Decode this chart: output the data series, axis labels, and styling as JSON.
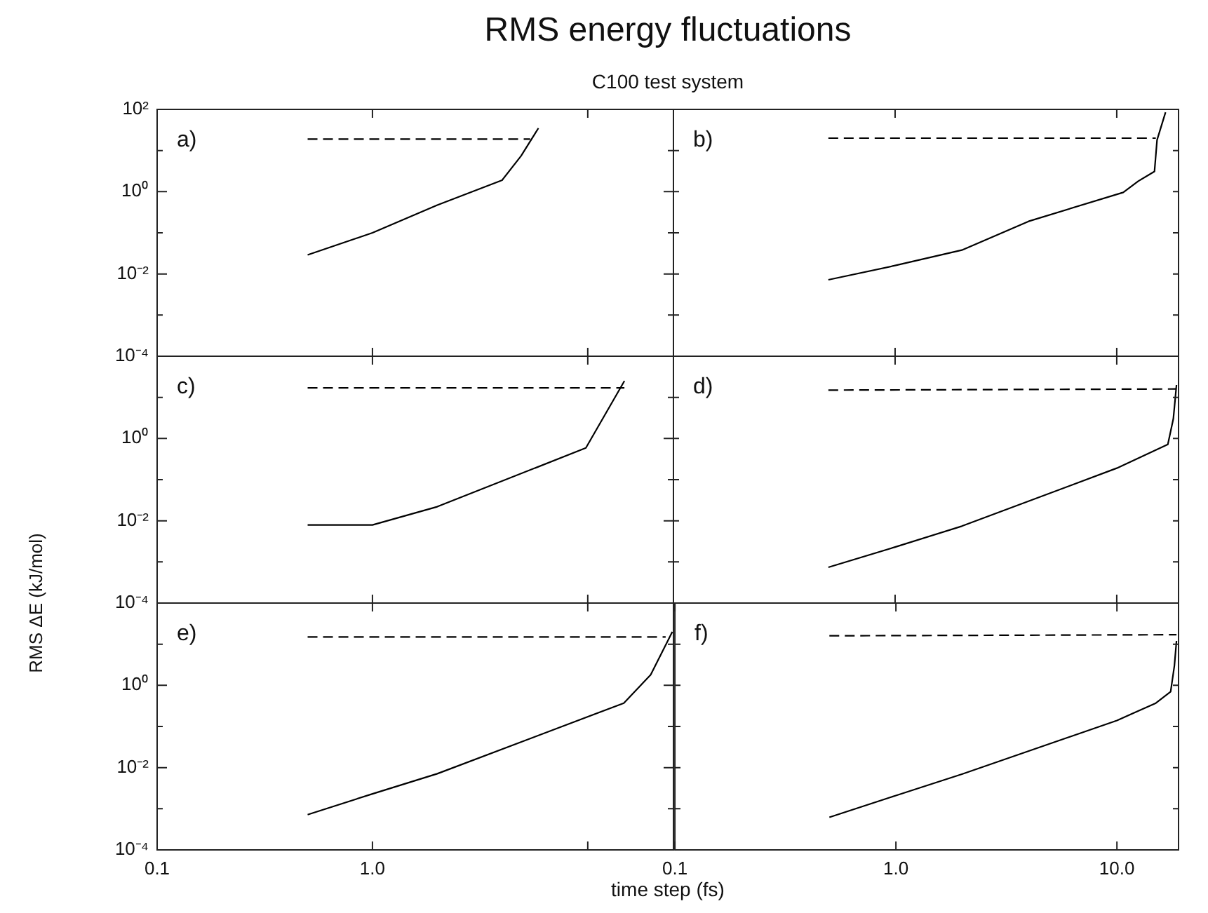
{
  "chart_data": [
    {
      "type": "line",
      "title": "RMS energy fluctuations",
      "subtitle": "C100 test system",
      "annotations": [
        "a)"
      ],
      "marker": "none",
      "legend": false,
      "grid": false,
      "log": "xy",
      "tick_labels": "y",
      "xlim": [
        0.1,
        25
      ],
      "xticks": [
        {
          "value": 0.1,
          "label": null
        },
        {
          "value": 1,
          "label": null
        },
        {
          "value": 10,
          "label": null
        }
      ],
      "ylim": [
        0.0001,
        100
      ],
      "yticks": [
        {
          "value": 100,
          "label": "10²"
        },
        {
          "value": 10,
          "label": null
        },
        {
          "value": 1,
          "label": "10⁰"
        },
        {
          "value": 0.1,
          "label": null
        },
        {
          "value": 0.01,
          "label": "10⁻²"
        },
        {
          "value": 0.001,
          "label": null
        },
        {
          "value": 0.0001,
          "label": "10⁻⁴"
        }
      ],
      "series": [
        {
          "color": "#000000",
          "line_style": "solid",
          "x": [
            0.5,
            1,
            2,
            4,
            4.9,
            5.9
          ],
          "values": [
            0.029,
            0.1,
            0.47,
            1.9,
            7.4,
            35
          ]
        },
        {
          "color": "#000000",
          "line_style": "dashed",
          "x": [
            0.5,
            5.4
          ],
          "values": [
            19,
            19
          ]
        }
      ]
    },
    {
      "type": "line",
      "annotations": [
        "b)"
      ],
      "marker": "none",
      "legend": false,
      "grid": false,
      "log": "xy",
      "tick_labels": false,
      "xlim": [
        0.1,
        19
      ],
      "xticks": [
        {
          "value": 0.1,
          "label": null
        },
        {
          "value": 1,
          "label": null
        },
        {
          "value": 10,
          "label": null
        }
      ],
      "ylim": [
        0.0001,
        100
      ],
      "yticks": [
        {
          "value": 100,
          "label": null
        },
        {
          "value": 10,
          "label": null
        },
        {
          "value": 1,
          "label": null
        },
        {
          "value": 0.1,
          "label": null
        },
        {
          "value": 0.01,
          "label": null
        },
        {
          "value": 0.001,
          "label": null
        },
        {
          "value": 0.0001,
          "label": null
        }
      ],
      "series": [
        {
          "color": "#000000",
          "line_style": "solid",
          "x": [
            0.5,
            1,
            2,
            4,
            10.7,
            12.5,
            14.8,
            15.2,
            16.6
          ],
          "values": [
            0.0072,
            0.016,
            0.038,
            0.19,
            0.96,
            1.8,
            3.1,
            18,
            85
          ]
        },
        {
          "color": "#000000",
          "line_style": "dashed",
          "x": [
            0.5,
            15
          ],
          "values": [
            20,
            20
          ]
        }
      ]
    },
    {
      "type": "line",
      "ylabel": "RMS ΔE (kJ/mol)",
      "annotations": [
        "c)"
      ],
      "marker": "none",
      "legend": false,
      "grid": false,
      "log": "xy",
      "tick_labels": "y",
      "xlim": [
        0.1,
        25
      ],
      "xticks": [
        {
          "value": 0.1,
          "label": null
        },
        {
          "value": 1,
          "label": null
        },
        {
          "value": 10,
          "label": null
        }
      ],
      "ylim": [
        0.0001,
        100
      ],
      "yticks": [
        {
          "value": 100,
          "label": null
        },
        {
          "value": 10,
          "label": null
        },
        {
          "value": 1,
          "label": "10⁰"
        },
        {
          "value": 0.1,
          "label": null
        },
        {
          "value": 0.01,
          "label": "10⁻²"
        },
        {
          "value": 0.001,
          "label": null
        },
        {
          "value": 0.0001,
          "label": "10⁻⁴"
        }
      ],
      "series": [
        {
          "color": "#000000",
          "line_style": "solid",
          "x": [
            0.5,
            1,
            2,
            9.8,
            14.8
          ],
          "values": [
            0.0079,
            0.0079,
            0.022,
            0.59,
            25
          ]
        },
        {
          "color": "#000000",
          "line_style": "dashed",
          "x": [
            0.5,
            14.8
          ],
          "values": [
            17,
            17
          ]
        }
      ]
    },
    {
      "type": "line",
      "annotations": [
        "d)"
      ],
      "marker": "none",
      "legend": false,
      "grid": false,
      "log": "xy",
      "tick_labels": false,
      "xlim": [
        0.1,
        19
      ],
      "xticks": [
        {
          "value": 0.1,
          "label": null
        },
        {
          "value": 1,
          "label": null
        },
        {
          "value": 10,
          "label": null
        }
      ],
      "ylim": [
        0.0001,
        100
      ],
      "yticks": [
        {
          "value": 100,
          "label": null
        },
        {
          "value": 10,
          "label": null
        },
        {
          "value": 1,
          "label": null
        },
        {
          "value": 0.1,
          "label": null
        },
        {
          "value": 0.01,
          "label": null
        },
        {
          "value": 0.001,
          "label": null
        },
        {
          "value": 0.0001,
          "label": null
        }
      ],
      "series": [
        {
          "color": "#000000",
          "line_style": "solid",
          "x": [
            0.5,
            1,
            2,
            10,
            17,
            18,
            18.6
          ],
          "values": [
            0.00074,
            0.0023,
            0.0074,
            0.19,
            0.72,
            3,
            20
          ]
        },
        {
          "color": "#000000",
          "line_style": "dashed",
          "x": [
            0.5,
            18.6
          ],
          "values": [
            15,
            16
          ]
        }
      ]
    },
    {
      "type": "line",
      "xlabel": "time step (fs)",
      "annotations": [
        "e)"
      ],
      "marker": "none",
      "legend": false,
      "grid": false,
      "log": "xy",
      "xlim": [
        0.1,
        25
      ],
      "xticks": [
        0.1,
        {
          "value": 1,
          "label": "1.0"
        },
        {
          "value": 10,
          "label": null
        }
      ],
      "ylim": [
        0.0001,
        100
      ],
      "yticks": [
        {
          "value": 100,
          "label": null
        },
        {
          "value": 10,
          "label": null
        },
        {
          "value": 1,
          "label": "10⁰"
        },
        {
          "value": 0.1,
          "label": null
        },
        {
          "value": 0.01,
          "label": "10⁻²"
        },
        {
          "value": 0.001,
          "label": null
        },
        {
          "value": 0.0001,
          "label": "10⁻⁴"
        }
      ],
      "series": [
        {
          "color": "#000000",
          "line_style": "solid",
          "x": [
            0.5,
            1,
            2,
            14.7,
            19.6,
            24.7
          ],
          "values": [
            0.00072,
            0.0023,
            0.0071,
            0.37,
            1.8,
            20
          ]
        },
        {
          "color": "#000000",
          "line_style": "dashed",
          "x": [
            0.5,
            23
          ],
          "values": [
            15,
            15
          ]
        }
      ]
    },
    {
      "type": "line",
      "annotations": [
        "f)"
      ],
      "marker": "none",
      "legend": false,
      "grid": false,
      "log": "xy",
      "tick_labels": "x",
      "xlim": [
        0.1,
        19
      ],
      "xticks": [
        0.1,
        {
          "value": 1,
          "label": "1.0"
        },
        {
          "value": 10,
          "label": "10.0"
        }
      ],
      "ylim": [
        0.0001,
        100
      ],
      "yticks": [
        {
          "value": 100,
          "label": null
        },
        {
          "value": 10,
          "label": null
        },
        {
          "value": 1,
          "label": null
        },
        {
          "value": 0.1,
          "label": null
        },
        {
          "value": 0.01,
          "label": null
        },
        {
          "value": 0.001,
          "label": null
        },
        {
          "value": 0.0001,
          "label": null
        }
      ],
      "series": [
        {
          "color": "#000000",
          "line_style": "solid",
          "x": [
            0.5,
            1,
            2,
            10,
            15,
            17.5,
            18.2,
            18.6
          ],
          "values": [
            0.00062,
            0.0021,
            0.007,
            0.14,
            0.37,
            0.7,
            3,
            12
          ]
        },
        {
          "color": "#000000",
          "line_style": "dashed",
          "x": [
            0.5,
            18.6
          ],
          "values": [
            16,
            17
          ]
        }
      ]
    }
  ]
}
